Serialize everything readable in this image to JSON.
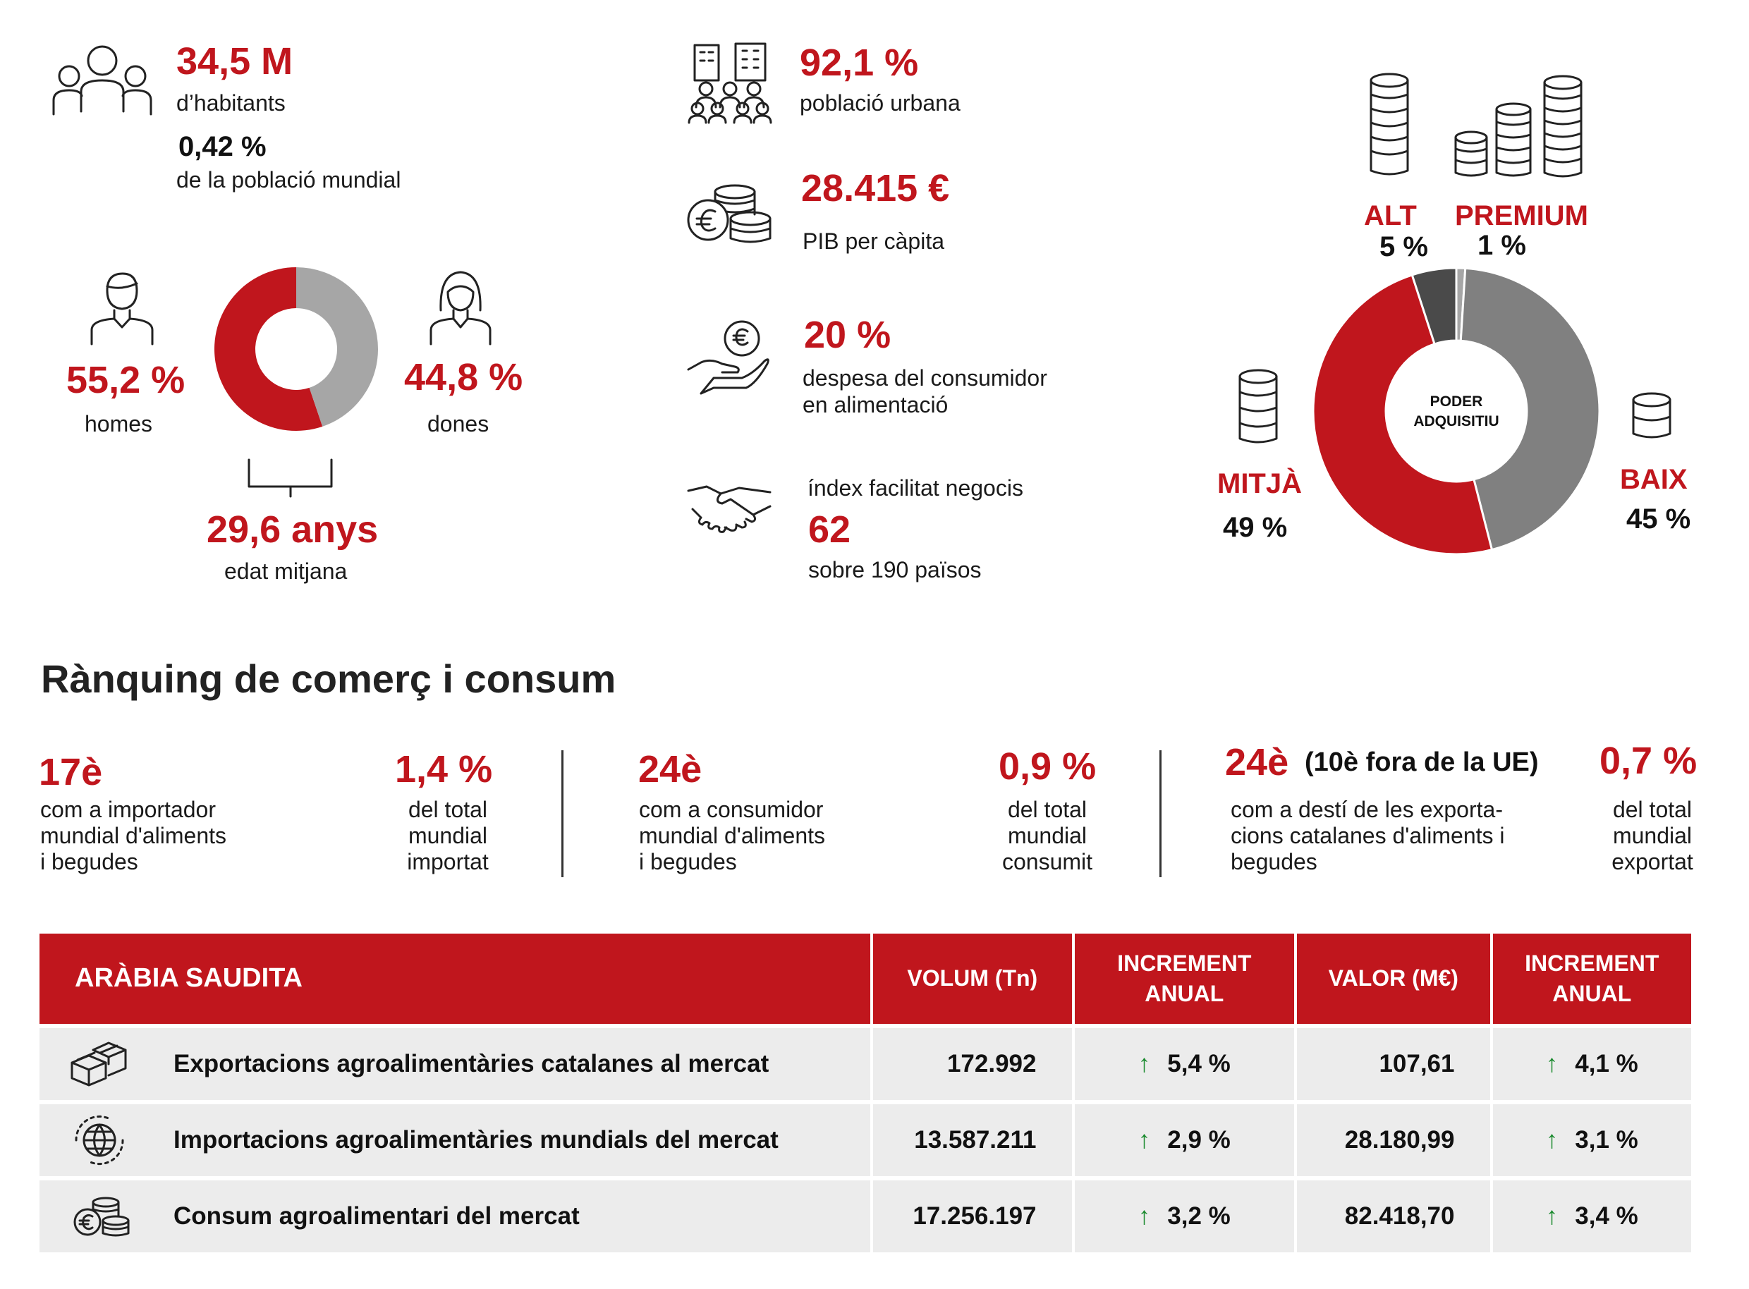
{
  "population": {
    "value": "34,5 M",
    "label": "d’habitants",
    "world_share": "0,42 %",
    "world_share_label": "de la població mundial"
  },
  "gender": {
    "men_value": "55,2 %",
    "men_label": "homes",
    "women_value": "44,8 %",
    "women_label": "dones",
    "age_value": "29,6 anys",
    "age_label": "edat mitjana"
  },
  "economy": {
    "urban_value": "92,1 %",
    "urban_label": "població urbana",
    "gdp_value": "28.415 €",
    "gdp_label": "PIB per càpita",
    "food_value": "20 %",
    "food_label_1": "despesa del consumidor",
    "food_label_2": "en alimentació",
    "business_label": "índex facilitat negocis",
    "business_value": "62",
    "business_sub": "sobre 190 països"
  },
  "purchasing": {
    "center_1": "PODER",
    "center_2": "ADQUISITIU",
    "alt_label": "ALT",
    "alt_value": "5 %",
    "premium_label": "PREMIUM",
    "premium_value": "1 %",
    "mitja_label": "MITJÀ",
    "mitja_value": "49 %",
    "baix_label": "BAIX",
    "baix_value": "45 %"
  },
  "ranking": {
    "title": "Rànquing de comerç i consum",
    "import_rank": "17è",
    "import_l1": "com a importador",
    "import_l2": "mundial d'aliments",
    "import_l3": "i begudes",
    "import_pct": "1,4 %",
    "import_pct_l1": "del total",
    "import_pct_l2": "mundial",
    "import_pct_l3": "importat",
    "cons_rank": "24è",
    "cons_l1": "com a consumidor",
    "cons_l2": "mundial d'aliments",
    "cons_l3": "i begudes",
    "cons_pct": "0,9 %",
    "cons_pct_l1": "del total",
    "cons_pct_l2": "mundial",
    "cons_pct_l3": "consumit",
    "exp_rank": "24è",
    "exp_note": "(10è fora de la UE)",
    "exp_l1": "com a destí de les exporta-",
    "exp_l2": "cions catalanes d'aliments i",
    "exp_l3": "begudes",
    "exp_pct": "0,7 %",
    "exp_pct_l1": "del total",
    "exp_pct_l2": "mundial",
    "exp_pct_l3": "exportat"
  },
  "table": {
    "country": "ARÀBIA SAUDITA",
    "col_volum": "VOLUM (Tn)",
    "col_inc1_a": "INCREMENT",
    "col_inc1_b": "ANUAL",
    "col_valor": "VALOR (M€)",
    "col_inc2_a": "INCREMENT",
    "col_inc2_b": "ANUAL",
    "arrow": "↑",
    "rows": [
      {
        "label": "Exportacions agroalimentàries catalanes al mercat",
        "volum": "172.992",
        "inc_volum": "5,4 %",
        "valor": "107,61",
        "inc_valor": "4,1 %"
      },
      {
        "label": "Importacions agroalimentàries mundials del mercat",
        "volum": "13.587.211",
        "inc_volum": "2,9 %",
        "valor": "28.180,99",
        "inc_valor": "3,1 %"
      },
      {
        "label": "Consum agroalimentari del mercat",
        "volum": "17.256.197",
        "inc_volum": "3,2 %",
        "valor": "82.418,70",
        "inc_valor": "3,4 %"
      }
    ]
  },
  "chart_data": [
    {
      "type": "pie",
      "categories": [
        "homes",
        "dones"
      ],
      "values": [
        55.2,
        44.8
      ],
      "colors": [
        "#c0161d",
        "#a6a6a6"
      ]
    },
    {
      "type": "pie",
      "categories": [
        "PREMIUM",
        "BAIX",
        "MITJÀ",
        "ALT"
      ],
      "values": [
        1,
        45,
        49,
        5
      ],
      "colors": [
        "#a6a6a6",
        "#808080",
        "#c0161d",
        "#4a4a4a"
      ]
    }
  ]
}
